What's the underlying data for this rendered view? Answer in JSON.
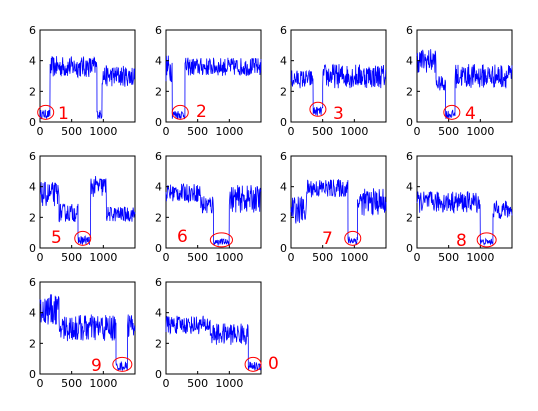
{
  "colors": {
    "series": "#0000ff",
    "marker": "#ff0000",
    "axis": "#000000"
  },
  "chart_data": [
    {
      "type": "line",
      "label": "1",
      "xlim": [
        0,
        1500
      ],
      "ylim": [
        0,
        6
      ],
      "x_ticks": [
        {
          "v": 0,
          "t": "0"
        },
        {
          "v": 500,
          "t": "500"
        },
        {
          "v": 1000,
          "t": "1000"
        }
      ],
      "y_ticks": [
        {
          "v": 0,
          "t": "0"
        },
        {
          "v": 2,
          "t": "2"
        },
        {
          "v": 4,
          "t": "4"
        },
        {
          "v": 6,
          "t": "6"
        }
      ],
      "segments": [
        {
          "x": [
            0,
            160
          ],
          "mean": 0.5,
          "amp": 0.3
        },
        {
          "x": [
            160,
            900
          ],
          "mean": 3.6,
          "amp": 0.7
        },
        {
          "x": [
            900,
            980
          ],
          "mean": 0.5,
          "amp": 0.3
        },
        {
          "x": [
            980,
            1500
          ],
          "mean": 3.0,
          "amp": 0.7
        }
      ],
      "highlight": {
        "x": [
          0,
          180
        ],
        "y": 0.5
      }
    },
    {
      "type": "line",
      "label": "2",
      "xlim": [
        0,
        1500
      ],
      "ylim": [
        0,
        6
      ],
      "x_ticks": [
        {
          "v": 0,
          "t": "0"
        },
        {
          "v": 500,
          "t": "500"
        },
        {
          "v": 1000,
          "t": "1000"
        }
      ],
      "y_ticks": [
        {
          "v": 0,
          "t": "0"
        },
        {
          "v": 2,
          "t": "2"
        },
        {
          "v": 4,
          "t": "4"
        },
        {
          "v": 6,
          "t": "6"
        }
      ],
      "segments": [
        {
          "x": [
            0,
            100
          ],
          "mean": 3.5,
          "amp": 0.9
        },
        {
          "x": [
            100,
            300
          ],
          "mean": 0.5,
          "amp": 0.3
        },
        {
          "x": [
            300,
            1500
          ],
          "mean": 3.6,
          "amp": 0.6
        }
      ],
      "highlight": {
        "x": [
          100,
          350
        ],
        "y": 0.5
      }
    },
    {
      "type": "line",
      "label": "3",
      "xlim": [
        0,
        1500
      ],
      "ylim": [
        0,
        6
      ],
      "x_ticks": [
        {
          "v": 0,
          "t": "0"
        },
        {
          "v": 500,
          "t": "500"
        },
        {
          "v": 1000,
          "t": "1000"
        }
      ],
      "y_ticks": [
        {
          "v": 0,
          "t": "0"
        },
        {
          "v": 2,
          "t": "2"
        },
        {
          "v": 4,
          "t": "4"
        },
        {
          "v": 6,
          "t": "6"
        }
      ],
      "segments": [
        {
          "x": [
            0,
            350
          ],
          "mean": 2.8,
          "amp": 0.6
        },
        {
          "x": [
            350,
            500
          ],
          "mean": 0.7,
          "amp": 0.3
        },
        {
          "x": [
            500,
            1500
          ],
          "mean": 3.0,
          "amp": 0.8
        }
      ],
      "highlight": {
        "x": [
          300,
          550
        ],
        "y": 0.7
      }
    },
    {
      "type": "line",
      "label": "4",
      "xlim": [
        0,
        1500
      ],
      "ylim": [
        0,
        6
      ],
      "x_ticks": [
        {
          "v": 0,
          "t": "0"
        },
        {
          "v": 500,
          "t": "500"
        },
        {
          "v": 1000,
          "t": "1000"
        }
      ],
      "y_ticks": [
        {
          "v": 0,
          "t": "0"
        },
        {
          "v": 2,
          "t": "2"
        },
        {
          "v": 4,
          "t": "4"
        },
        {
          "v": 6,
          "t": "6"
        }
      ],
      "segments": [
        {
          "x": [
            0,
            300
          ],
          "mean": 4.0,
          "amp": 0.8
        },
        {
          "x": [
            300,
            450
          ],
          "mean": 2.5,
          "amp": 0.5
        },
        {
          "x": [
            450,
            600
          ],
          "mean": 0.5,
          "amp": 0.3
        },
        {
          "x": [
            600,
            1500
          ],
          "mean": 3.0,
          "amp": 0.8
        }
      ],
      "highlight": {
        "x": [
          450,
          650
        ],
        "y": 0.5
      }
    },
    {
      "type": "line",
      "label": "5",
      "xlim": [
        0,
        1500
      ],
      "ylim": [
        0,
        6
      ],
      "x_ticks": [
        {
          "v": 0,
          "t": "0"
        },
        {
          "v": 500,
          "t": "500"
        },
        {
          "v": 1000,
          "t": "1000"
        }
      ],
      "y_ticks": [
        {
          "v": 0,
          "t": "0"
        },
        {
          "v": 2,
          "t": "2"
        },
        {
          "v": 4,
          "t": "4"
        },
        {
          "v": 6,
          "t": "6"
        }
      ],
      "segments": [
        {
          "x": [
            0,
            300
          ],
          "mean": 3.5,
          "amp": 0.8
        },
        {
          "x": [
            300,
            600
          ],
          "mean": 2.3,
          "amp": 0.6
        },
        {
          "x": [
            600,
            800
          ],
          "mean": 0.5,
          "amp": 0.3
        },
        {
          "x": [
            800,
            1050
          ],
          "mean": 4.0,
          "amp": 0.7
        },
        {
          "x": [
            1050,
            1500
          ],
          "mean": 2.2,
          "amp": 0.5
        }
      ],
      "highlight": {
        "x": [
          550,
          800
        ],
        "y": 0.5
      }
    },
    {
      "type": "line",
      "label": "6",
      "xlim": [
        0,
        1500
      ],
      "ylim": [
        0,
        6
      ],
      "x_ticks": [
        {
          "v": 0,
          "t": "0"
        },
        {
          "v": 500,
          "t": "500"
        },
        {
          "v": 1000,
          "t": "1000"
        }
      ],
      "y_ticks": [
        {
          "v": 0,
          "t": "0"
        },
        {
          "v": 2,
          "t": "2"
        },
        {
          "v": 4,
          "t": "4"
        },
        {
          "v": 6,
          "t": "6"
        }
      ],
      "segments": [
        {
          "x": [
            0,
            550
          ],
          "mean": 3.6,
          "amp": 0.6
        },
        {
          "x": [
            550,
            750
          ],
          "mean": 2.8,
          "amp": 0.7
        },
        {
          "x": [
            750,
            1000
          ],
          "mean": 0.4,
          "amp": 0.2
        },
        {
          "x": [
            1000,
            1500
          ],
          "mean": 3.2,
          "amp": 0.9
        }
      ],
      "highlight": {
        "x": [
          700,
          1050
        ],
        "y": 0.4
      }
    },
    {
      "type": "line",
      "label": "7",
      "xlim": [
        0,
        1500
      ],
      "ylim": [
        0,
        6
      ],
      "x_ticks": [
        {
          "v": 0,
          "t": "0"
        },
        {
          "v": 500,
          "t": "500"
        },
        {
          "v": 1000,
          "t": "1000"
        }
      ],
      "y_ticks": [
        {
          "v": 0,
          "t": "0"
        },
        {
          "v": 2,
          "t": "2"
        },
        {
          "v": 4,
          "t": "4"
        },
        {
          "v": 6,
          "t": "6"
        }
      ],
      "segments": [
        {
          "x": [
            0,
            250
          ],
          "mean": 2.5,
          "amp": 0.9
        },
        {
          "x": [
            250,
            900
          ],
          "mean": 3.9,
          "amp": 0.6
        },
        {
          "x": [
            900,
            1050
          ],
          "mean": 0.5,
          "amp": 0.3
        },
        {
          "x": [
            1050,
            1500
          ],
          "mean": 3.0,
          "amp": 0.9
        }
      ],
      "highlight": {
        "x": [
          850,
          1100
        ],
        "y": 0.5
      }
    },
    {
      "type": "line",
      "label": "8",
      "xlim": [
        0,
        1500
      ],
      "ylim": [
        0,
        6
      ],
      "x_ticks": [
        {
          "v": 0,
          "t": "0"
        },
        {
          "v": 500,
          "t": "500"
        },
        {
          "v": 1000,
          "t": "1000"
        }
      ],
      "y_ticks": [
        {
          "v": 0,
          "t": "0"
        },
        {
          "v": 2,
          "t": "2"
        },
        {
          "v": 4,
          "t": "4"
        },
        {
          "v": 6,
          "t": "6"
        }
      ],
      "segments": [
        {
          "x": [
            0,
            1000
          ],
          "mean": 3.0,
          "amp": 0.7
        },
        {
          "x": [
            1000,
            1200
          ],
          "mean": 0.4,
          "amp": 0.2
        },
        {
          "x": [
            1200,
            1500
          ],
          "mean": 2.5,
          "amp": 0.6
        }
      ],
      "highlight": {
        "x": [
          950,
          1250
        ],
        "y": 0.4
      }
    },
    {
      "type": "line",
      "label": "9",
      "xlim": [
        0,
        1500
      ],
      "ylim": [
        0,
        6
      ],
      "x_ticks": [
        {
          "v": 0,
          "t": "0"
        },
        {
          "v": 500,
          "t": "500"
        },
        {
          "v": 1000,
          "t": "1000"
        }
      ],
      "y_ticks": [
        {
          "v": 0,
          "t": "0"
        },
        {
          "v": 2,
          "t": "2"
        },
        {
          "v": 4,
          "t": "4"
        },
        {
          "v": 6,
          "t": "6"
        }
      ],
      "segments": [
        {
          "x": [
            0,
            300
          ],
          "mean": 4.2,
          "amp": 1.0
        },
        {
          "x": [
            300,
            1200
          ],
          "mean": 3.0,
          "amp": 0.9
        },
        {
          "x": [
            1200,
            1380
          ],
          "mean": 0.5,
          "amp": 0.3
        },
        {
          "x": [
            1380,
            1500
          ],
          "mean": 3.2,
          "amp": 0.8
        }
      ],
      "highlight": {
        "x": [
          1150,
          1450
        ],
        "y": 0.5
      }
    },
    {
      "type": "line",
      "label": "0",
      "xlim": [
        0,
        1500
      ],
      "ylim": [
        0,
        6
      ],
      "x_ticks": [
        {
          "v": 0,
          "t": "0"
        },
        {
          "v": 500,
          "t": "500"
        },
        {
          "v": 1000,
          "t": "1000"
        }
      ],
      "y_ticks": [
        {
          "v": 0,
          "t": "0"
        },
        {
          "v": 2,
          "t": "2"
        },
        {
          "v": 4,
          "t": "4"
        },
        {
          "v": 6,
          "t": "6"
        }
      ],
      "segments": [
        {
          "x": [
            0,
            700
          ],
          "mean": 3.2,
          "amp": 0.6
        },
        {
          "x": [
            700,
            1300
          ],
          "mean": 2.6,
          "amp": 0.7
        },
        {
          "x": [
            1300,
            1500
          ],
          "mean": 0.5,
          "amp": 0.3
        }
      ],
      "highlight": {
        "x": [
          1250,
          1500
        ],
        "y": 0.5
      }
    }
  ]
}
